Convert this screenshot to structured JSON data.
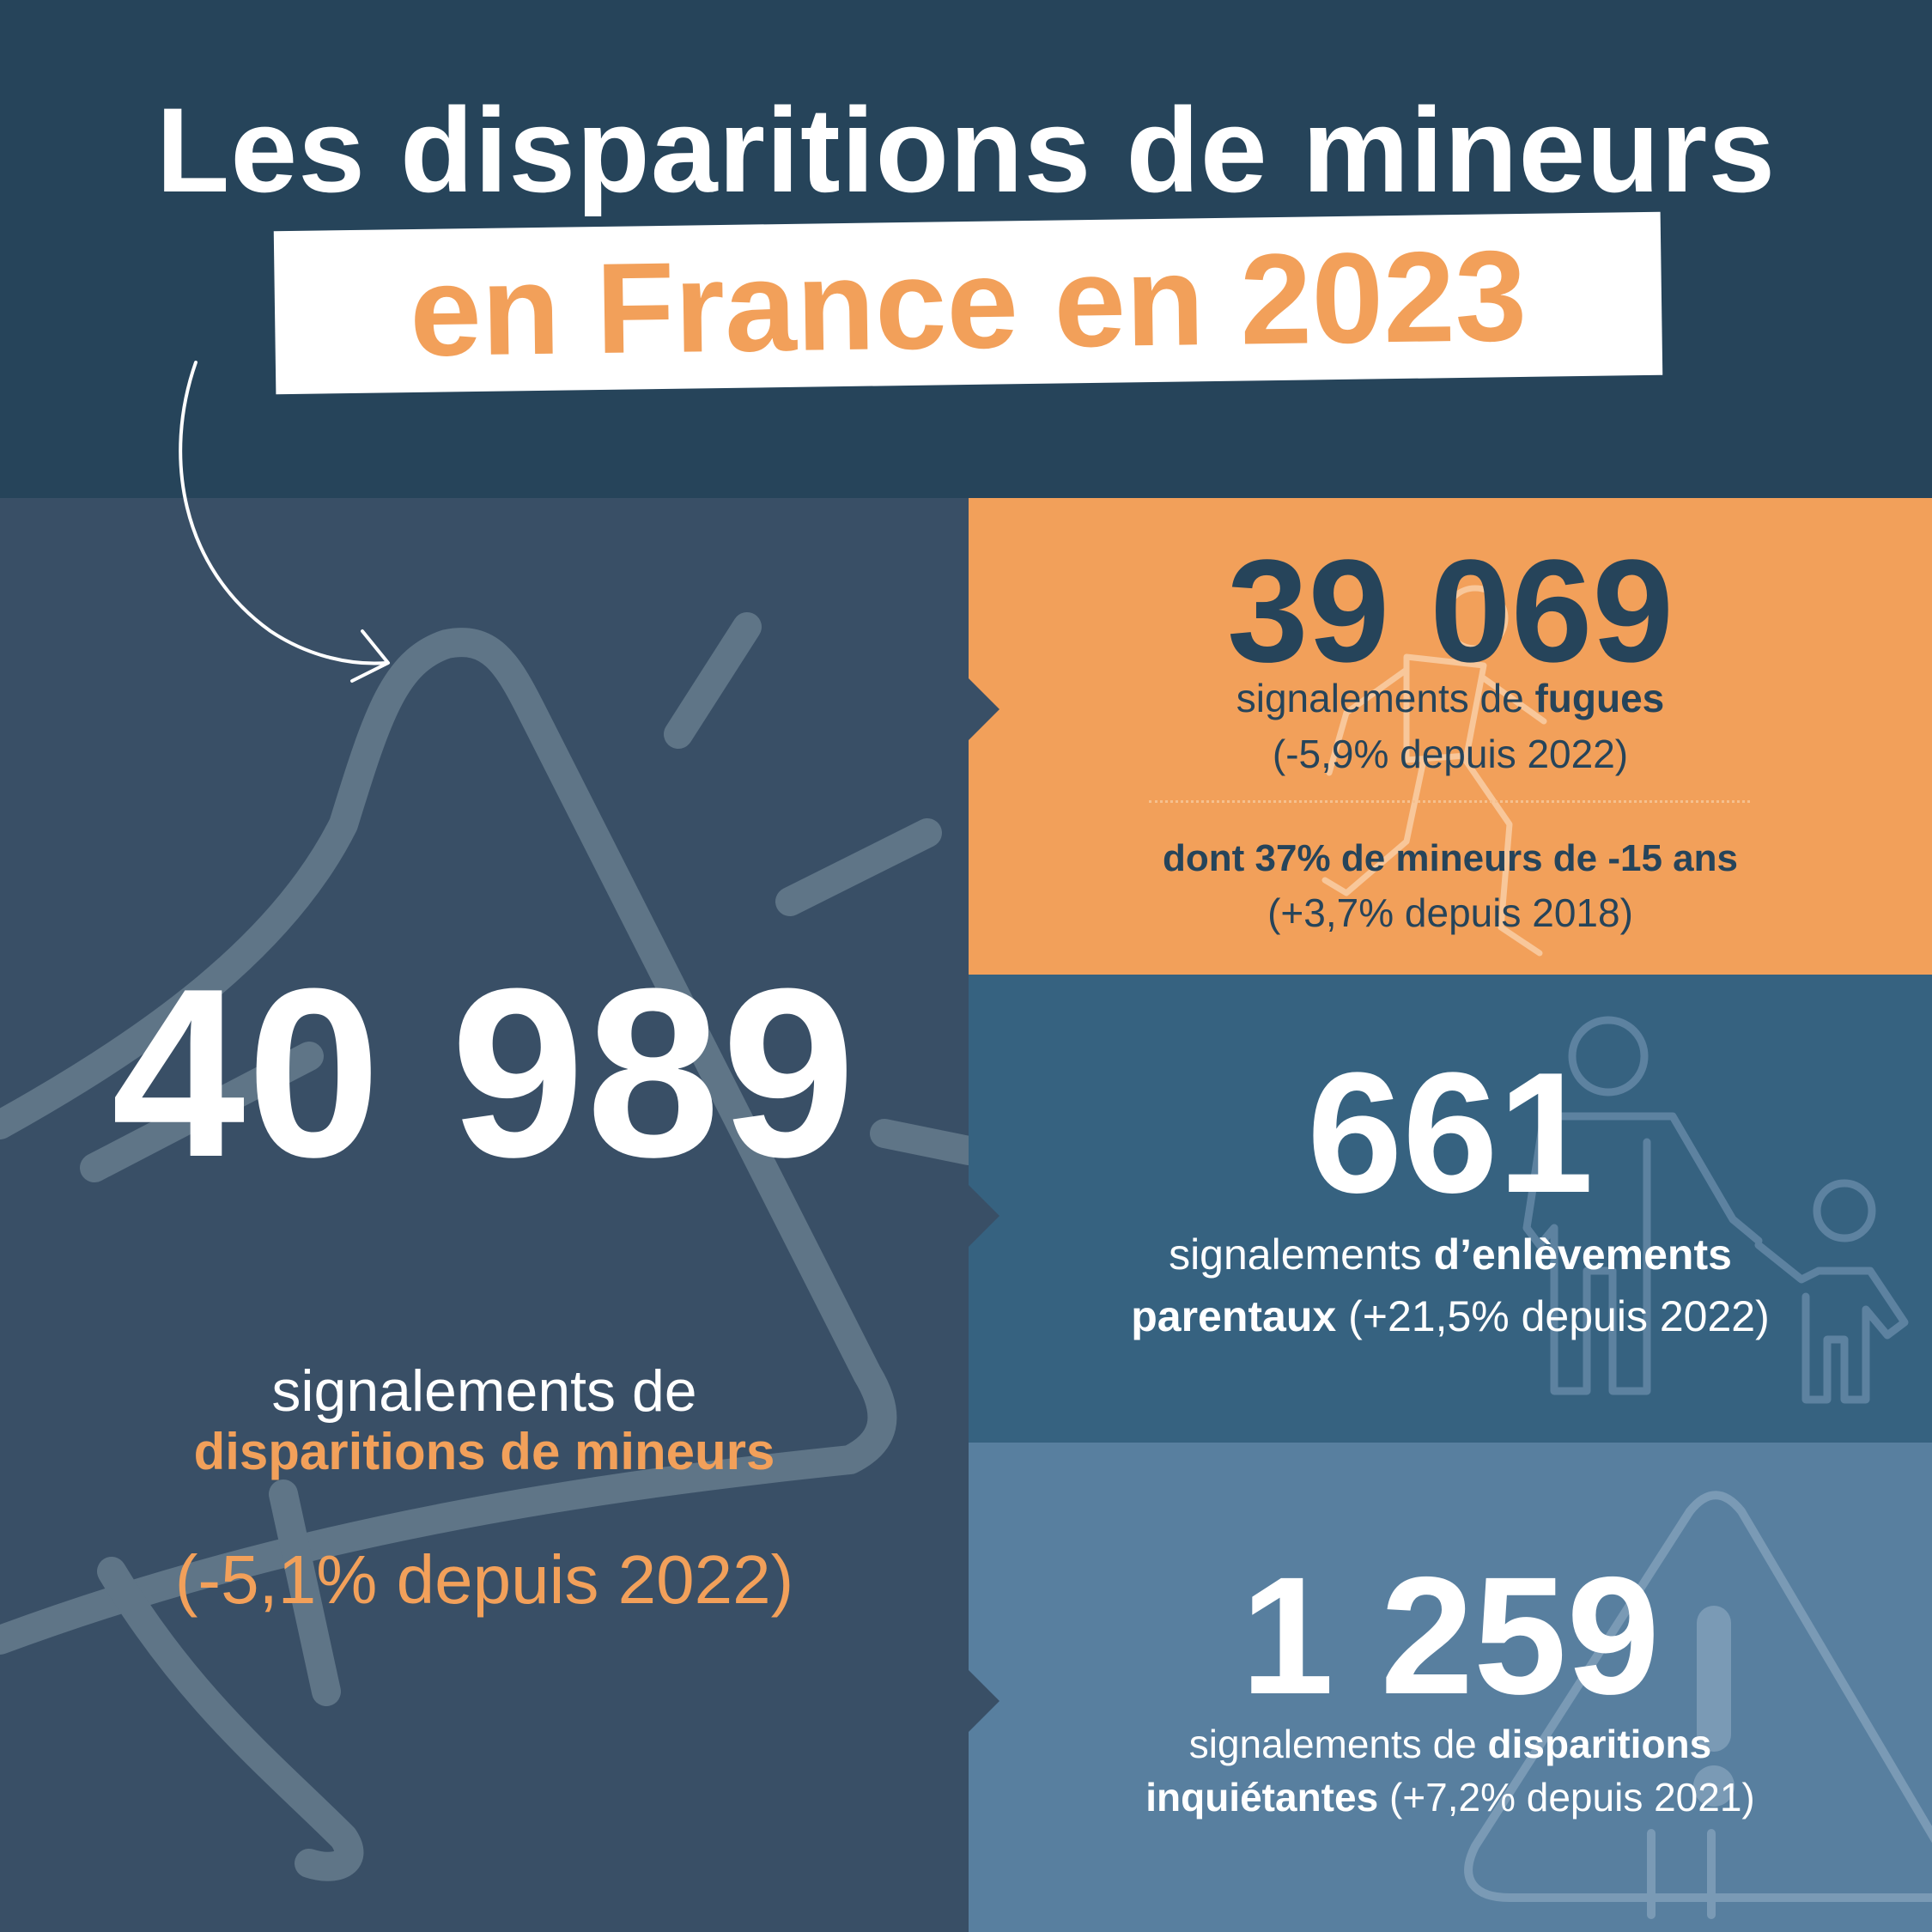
{
  "title": {
    "line1": "Les disparitions de mineurs",
    "line2": "en France en 2023"
  },
  "main_stat": {
    "value": "40 989",
    "label_line1": "signalements de",
    "label_line2": "disparitions de mineurs",
    "change": "(-5,1% depuis 2022)"
  },
  "fugues": {
    "value": "39 069",
    "label_prefix": "signalements de ",
    "label_bold": "fugues",
    "change": "(-5,9% depuis 2022)",
    "sub_bold": "dont 37% de mineurs de -15 ans",
    "sub_change": "(+3,7% depuis 2018)"
  },
  "enlevements": {
    "value": "661",
    "label_prefix": "signalements ",
    "label_bold1": "d’enlèvements",
    "label_bold2": "parentaux",
    "change": " (+21,5% depuis 2022)"
  },
  "inquietantes": {
    "value": "1 259",
    "label_prefix": "signalements de ",
    "label_bold1": "disparitions",
    "label_bold2": "inquiétantes",
    "change": " (+7,2% depuis 2021)"
  },
  "icons": [
    "megaphone-icon",
    "running-person-icon",
    "parent-child-icon",
    "warning-triangle-icon",
    "curved-arrow-icon"
  ],
  "colors": {
    "navy": "#26445a",
    "slate": "#394f66",
    "orange": "#f2a05a",
    "blue": "#366280",
    "light_blue": "#587f9f",
    "white": "#ffffff"
  }
}
